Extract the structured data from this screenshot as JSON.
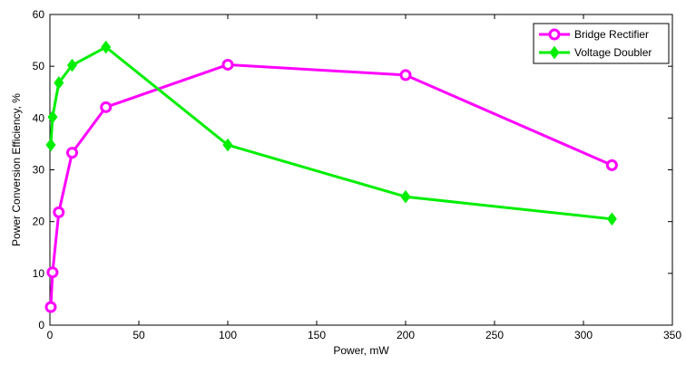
{
  "chart_data": {
    "type": "line",
    "xlabel": "Power, mW",
    "ylabel": "Power Conversion Efficiency, %",
    "xlim": [
      0,
      350
    ],
    "ylim": [
      0,
      60
    ],
    "xticks": [
      0,
      50,
      100,
      150,
      200,
      250,
      300,
      350
    ],
    "yticks": [
      0,
      10,
      20,
      30,
      40,
      50,
      60
    ],
    "grid": true,
    "legend_position": "top-right",
    "series": [
      {
        "name": "Bridge Rectifier",
        "color": "#ff00ff",
        "marker": "circle",
        "x": [
          0.5,
          1.5,
          5,
          12.5,
          31.5,
          100,
          200,
          316
        ],
        "y": [
          3.5,
          10.2,
          21.8,
          33.3,
          42.1,
          50.3,
          48.3,
          30.9
        ]
      },
      {
        "name": "Voltage Doubler",
        "color": "#00ee00",
        "marker": "diamond",
        "x": [
          0.5,
          1.5,
          5,
          12.5,
          31.5,
          100,
          200,
          316
        ],
        "y": [
          34.8,
          40.2,
          46.8,
          50.2,
          53.7,
          34.8,
          24.8,
          20.5
        ]
      }
    ]
  }
}
